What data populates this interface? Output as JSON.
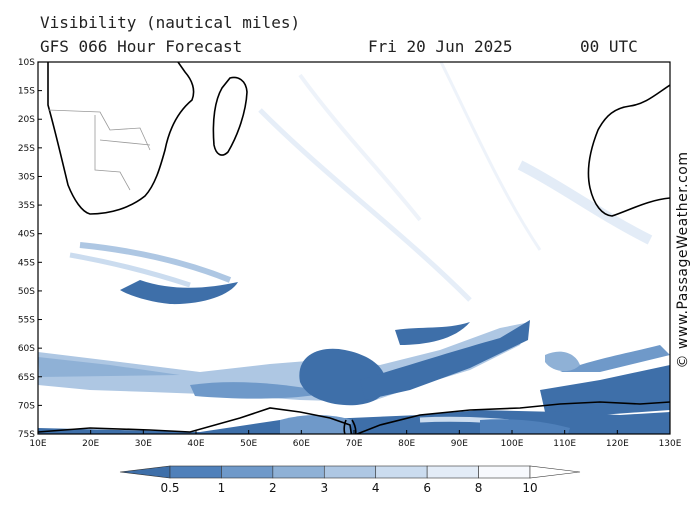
{
  "header": {
    "title": "Visibility (nautical miles)",
    "subtitle": "GFS 066 Hour Forecast",
    "date": "Fri 20 Jun 2025",
    "time": "00 UTC"
  },
  "credit": "© www.PassageWeather.com",
  "map_data": {
    "type": "heatmap",
    "lon_range": [
      10,
      130
    ],
    "lat_range": [
      -75,
      -10
    ],
    "lon_ticks": [
      "10E",
      "20E",
      "30E",
      "40E",
      "50E",
      "60E",
      "70E",
      "80E",
      "90E",
      "100E",
      "110E",
      "120E",
      "130E"
    ],
    "lat_ticks": [
      "10S",
      "15S",
      "20S",
      "25S",
      "30S",
      "35S",
      "40S",
      "45S",
      "50S",
      "55S",
      "60S",
      "65S",
      "70S",
      "75S"
    ]
  },
  "legend": {
    "labels": [
      "0.5",
      "1",
      "2",
      "3",
      "4",
      "6",
      "8",
      "10"
    ],
    "colors": [
      "#3e6fa9",
      "#4f80ba",
      "#6f99c9",
      "#8fb1d6",
      "#aec7e3",
      "#cbdcef",
      "#e3ecf7",
      "#f7f9fd"
    ]
  }
}
